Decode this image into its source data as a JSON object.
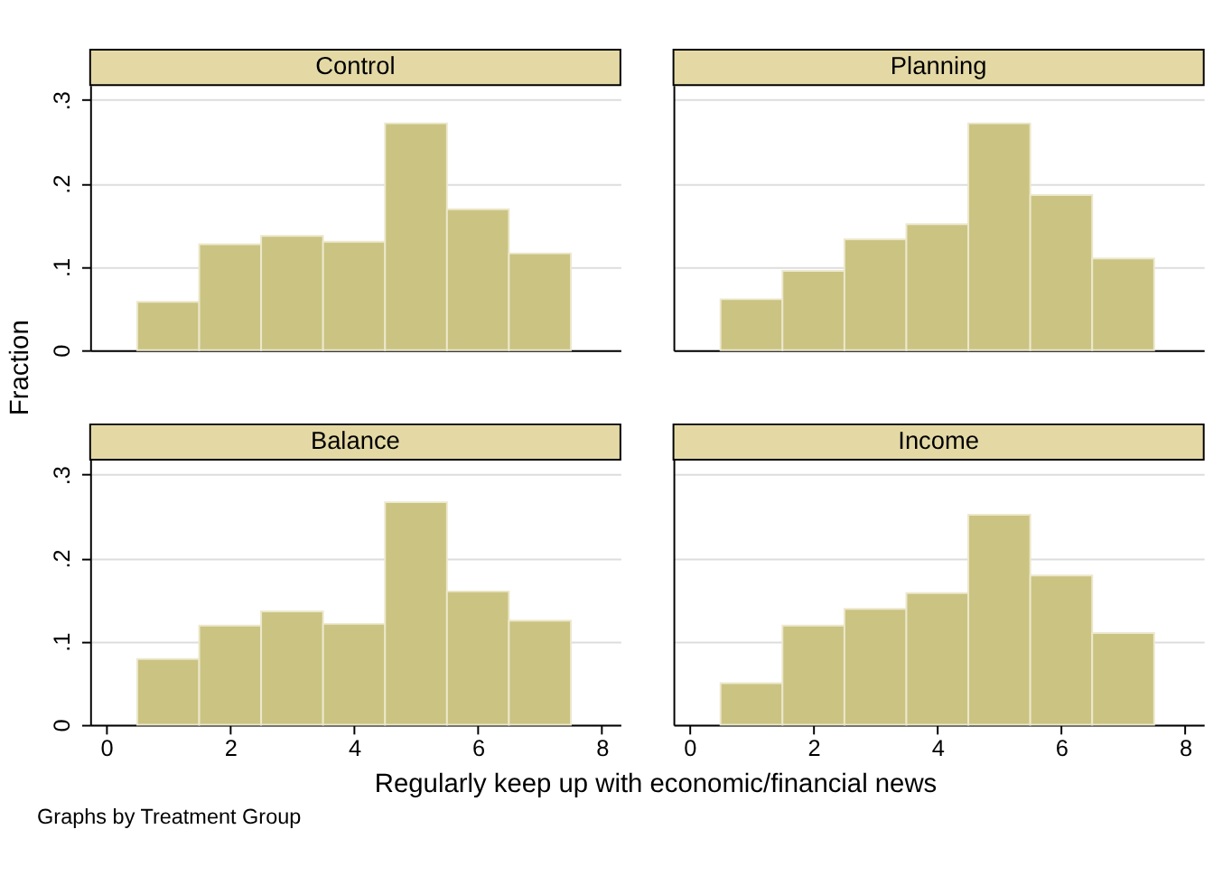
{
  "chart_data": [
    {
      "type": "histogram",
      "title": "Control",
      "ylabel": "Fraction",
      "bins": [
        0.5,
        1.5,
        2.5,
        3.5,
        4.5,
        5.5,
        6.5,
        7.5
      ],
      "values": [
        0.058,
        0.127,
        0.137,
        0.13,
        0.272,
        0.169,
        0.116
      ],
      "color": "#cbc382",
      "xlim": [
        -0.26,
        8.3
      ],
      "ylim": [
        0,
        0.318
      ],
      "xticks": [
        0,
        2,
        4,
        6,
        8
      ],
      "yticks": [
        0,
        {
          "value": 0.1,
          "label": ".1"
        },
        {
          "value": 0.2,
          "label": ".2"
        },
        {
          "value": 0.3,
          "label": ".3"
        }
      ],
      "grid": "y",
      "tick_labels": "y"
    },
    {
      "type": "histogram",
      "title": "Planning",
      "bins": [
        0.5,
        1.5,
        2.5,
        3.5,
        4.5,
        5.5,
        6.5,
        7.5
      ],
      "values": [
        0.061,
        0.095,
        0.133,
        0.151,
        0.272,
        0.186,
        0.11
      ],
      "color": "#cbc382",
      "xlim": [
        -0.26,
        8.3
      ],
      "ylim": [
        0,
        0.318
      ],
      "xticks": [
        0,
        2,
        4,
        6,
        8
      ],
      "yticks": [
        {
          "value": 0,
          "label": null
        },
        {
          "value": 0.1,
          "label": null
        },
        {
          "value": 0.2,
          "label": null
        },
        {
          "value": 0.3,
          "label": null
        }
      ],
      "grid": "y",
      "tick_labels": false
    },
    {
      "type": "histogram",
      "title": "Balance",
      "xlabel": "Regularly keep up with economic/financial news",
      "annotations": [
        "Graphs by Treatment Group"
      ],
      "bins": [
        0.5,
        1.5,
        2.5,
        3.5,
        4.5,
        5.5,
        6.5,
        7.5
      ],
      "values": [
        0.079,
        0.119,
        0.136,
        0.121,
        0.267,
        0.16,
        0.125
      ],
      "color": "#cbc382",
      "xlim": [
        -0.26,
        8.3
      ],
      "ylim": [
        0,
        0.318
      ],
      "xticks": [
        0,
        2,
        4,
        6,
        8
      ],
      "yticks": [
        0,
        {
          "value": 0.1,
          "label": ".1"
        },
        {
          "value": 0.2,
          "label": ".2"
        },
        {
          "value": 0.3,
          "label": ".3"
        }
      ],
      "grid": "y"
    },
    {
      "type": "histogram",
      "title": "Income",
      "bins": [
        0.5,
        1.5,
        2.5,
        3.5,
        4.5,
        5.5,
        6.5,
        7.5
      ],
      "values": [
        0.05,
        0.119,
        0.139,
        0.158,
        0.252,
        0.179,
        0.11
      ],
      "color": "#cbc382",
      "xlim": [
        -0.26,
        8.3
      ],
      "ylim": [
        0,
        0.318
      ],
      "xticks": [
        0,
        2,
        4,
        6,
        8
      ],
      "yticks": [
        {
          "value": 0,
          "label": null
        },
        {
          "value": 0.1,
          "label": null
        },
        {
          "value": 0.2,
          "label": null
        },
        {
          "value": 0.3,
          "label": null
        }
      ],
      "grid": "y",
      "tick_labels": "x"
    }
  ]
}
